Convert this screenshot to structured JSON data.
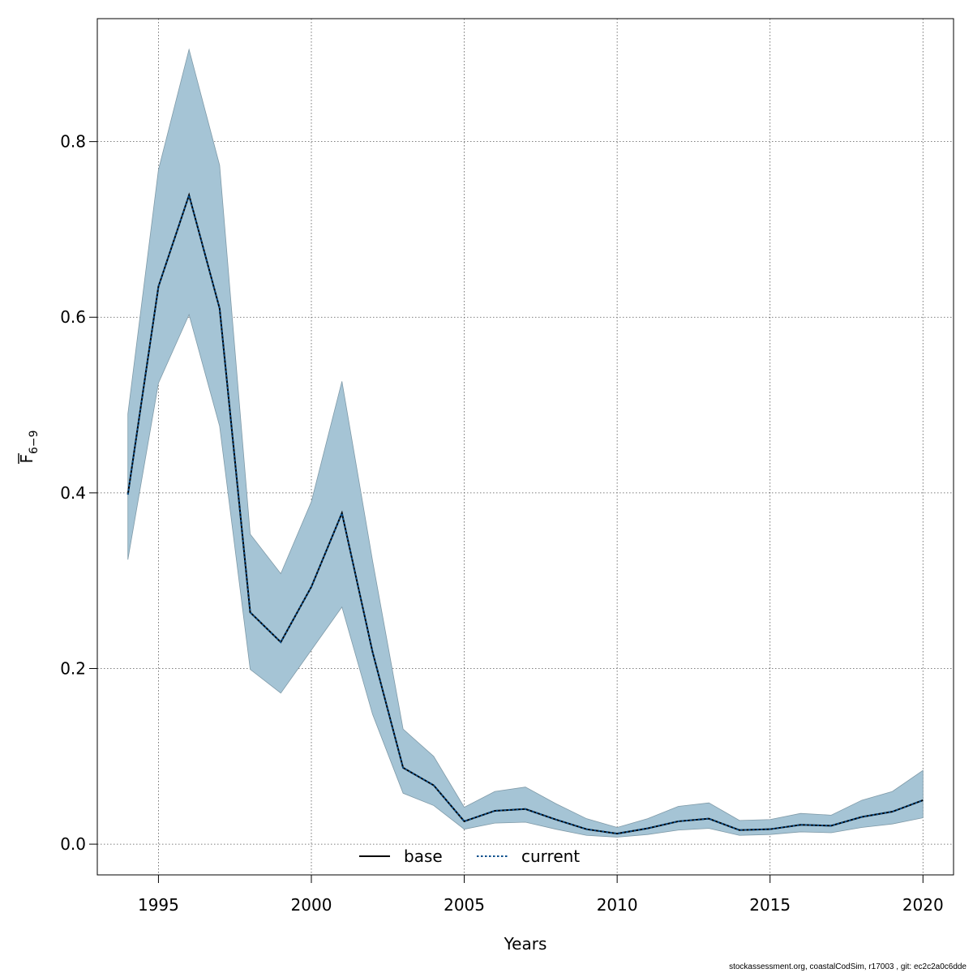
{
  "chart_data": {
    "type": "line",
    "xlabel": "Years",
    "ylabel": {
      "symbol": "F",
      "subscript": "6−9"
    },
    "xlim": [
      1993,
      2021
    ],
    "ylim": [
      -0.035,
      0.94
    ],
    "x_ticks": [
      1995,
      2000,
      2005,
      2010,
      2015,
      2020
    ],
    "y_ticks": [
      0.0,
      0.2,
      0.4,
      0.6,
      0.8
    ],
    "y_tick_labels": [
      "0.0",
      "0.2",
      "0.4",
      "0.6",
      "0.8"
    ],
    "grid": true,
    "x": [
      1994,
      1995,
      1996,
      1997,
      1998,
      1999,
      2000,
      2001,
      2002,
      2003,
      2004,
      2005,
      2006,
      2007,
      2008,
      2009,
      2010,
      2011,
      2012,
      2013,
      2014,
      2015,
      2016,
      2017,
      2018,
      2019,
      2020
    ],
    "series": [
      {
        "name": "base",
        "style": "solid",
        "color": "#000000",
        "values": [
          0.398,
          0.635,
          0.739,
          0.61,
          0.264,
          0.23,
          0.293,
          0.377,
          0.219,
          0.087,
          0.067,
          0.026,
          0.038,
          0.04,
          0.028,
          0.017,
          0.012,
          0.018,
          0.026,
          0.029,
          0.016,
          0.017,
          0.022,
          0.021,
          0.031,
          0.037,
          0.05
        ]
      },
      {
        "name": "current",
        "style": "dotted",
        "color": "#0a4f8c",
        "values": [
          0.398,
          0.635,
          0.739,
          0.61,
          0.264,
          0.23,
          0.293,
          0.377,
          0.219,
          0.087,
          0.067,
          0.026,
          0.038,
          0.04,
          0.028,
          0.017,
          0.012,
          0.018,
          0.026,
          0.029,
          0.016,
          0.017,
          0.022,
          0.021,
          0.031,
          0.037,
          0.05
        ]
      }
    ],
    "confidence_band": {
      "color": "#a5c4d5",
      "lower": [
        0.324,
        0.525,
        0.603,
        0.476,
        0.199,
        0.172,
        0.221,
        0.27,
        0.148,
        0.058,
        0.044,
        0.017,
        0.024,
        0.025,
        0.017,
        0.01,
        0.008,
        0.011,
        0.016,
        0.018,
        0.01,
        0.011,
        0.014,
        0.013,
        0.019,
        0.023,
        0.03
      ],
      "upper": [
        0.49,
        0.768,
        0.905,
        0.773,
        0.353,
        0.308,
        0.39,
        0.527,
        0.323,
        0.131,
        0.1,
        0.042,
        0.06,
        0.065,
        0.046,
        0.029,
        0.019,
        0.029,
        0.043,
        0.047,
        0.027,
        0.028,
        0.035,
        0.033,
        0.05,
        0.06,
        0.084
      ]
    },
    "legend": {
      "position": "bottom-center",
      "entries": [
        "base",
        "current"
      ]
    }
  },
  "footer": "stockassessment.org, coastalCodSim, r17003 , git: ec2c2a0c6dde"
}
